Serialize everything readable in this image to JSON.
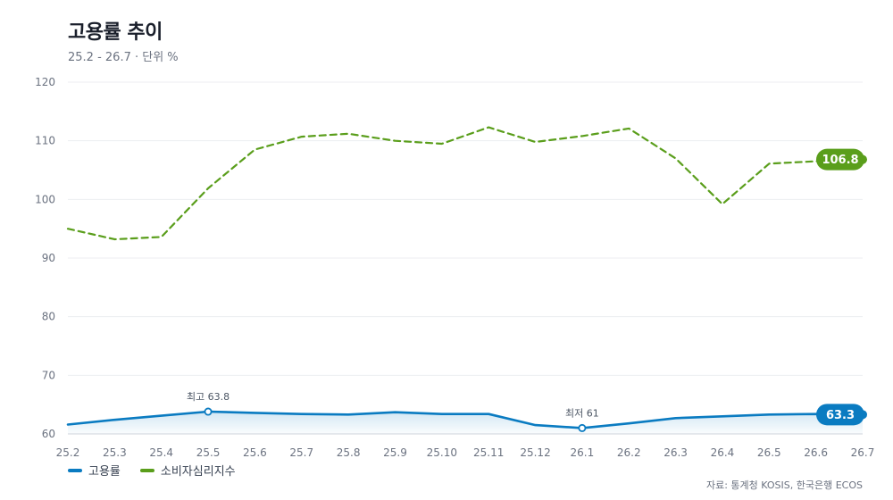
{
  "title": "고용률 추이",
  "subtitle": "25.2 - 26.7 · 단위 %",
  "source": "자료: 통계청 KOSIS, 한국은행 ECOS",
  "chart_data": {
    "type": "line",
    "categories": [
      "25.2",
      "25.3",
      "25.4",
      "25.5",
      "25.6",
      "25.7",
      "25.8",
      "25.9",
      "25.10",
      "25.11",
      "25.12",
      "26.1",
      "26.2",
      "26.3",
      "26.4",
      "26.5",
      "26.6",
      "26.7"
    ],
    "ylim": [
      60,
      120
    ],
    "yticks": [
      60,
      70,
      80,
      90,
      100,
      110,
      120
    ],
    "grid": true,
    "legend_position": "bottom-left",
    "series": [
      {
        "name": "고용률",
        "color": "#0a7bc1",
        "style": "solid",
        "area_fill": true,
        "values": [
          61.6,
          62.4,
          63.1,
          63.8,
          63.6,
          63.4,
          63.3,
          63.7,
          63.4,
          63.4,
          61.5,
          61.0,
          61.8,
          62.7,
          63.0,
          63.3,
          63.4,
          63.3
        ],
        "end_label": "63.3",
        "annotations": [
          {
            "index": 3,
            "text": "최고 63.8"
          },
          {
            "index": 11,
            "text": "최저 61"
          }
        ]
      },
      {
        "name": "소비자심리지수",
        "color": "#5a9e1b",
        "style": "dashed",
        "area_fill": false,
        "values": [
          95.0,
          93.2,
          93.6,
          101.9,
          108.5,
          110.7,
          111.2,
          110.0,
          109.5,
          112.3,
          109.8,
          110.8,
          112.1,
          107.0,
          99.2,
          106.1,
          106.5,
          106.8
        ],
        "end_label": "106.8",
        "annotations": []
      }
    ]
  }
}
